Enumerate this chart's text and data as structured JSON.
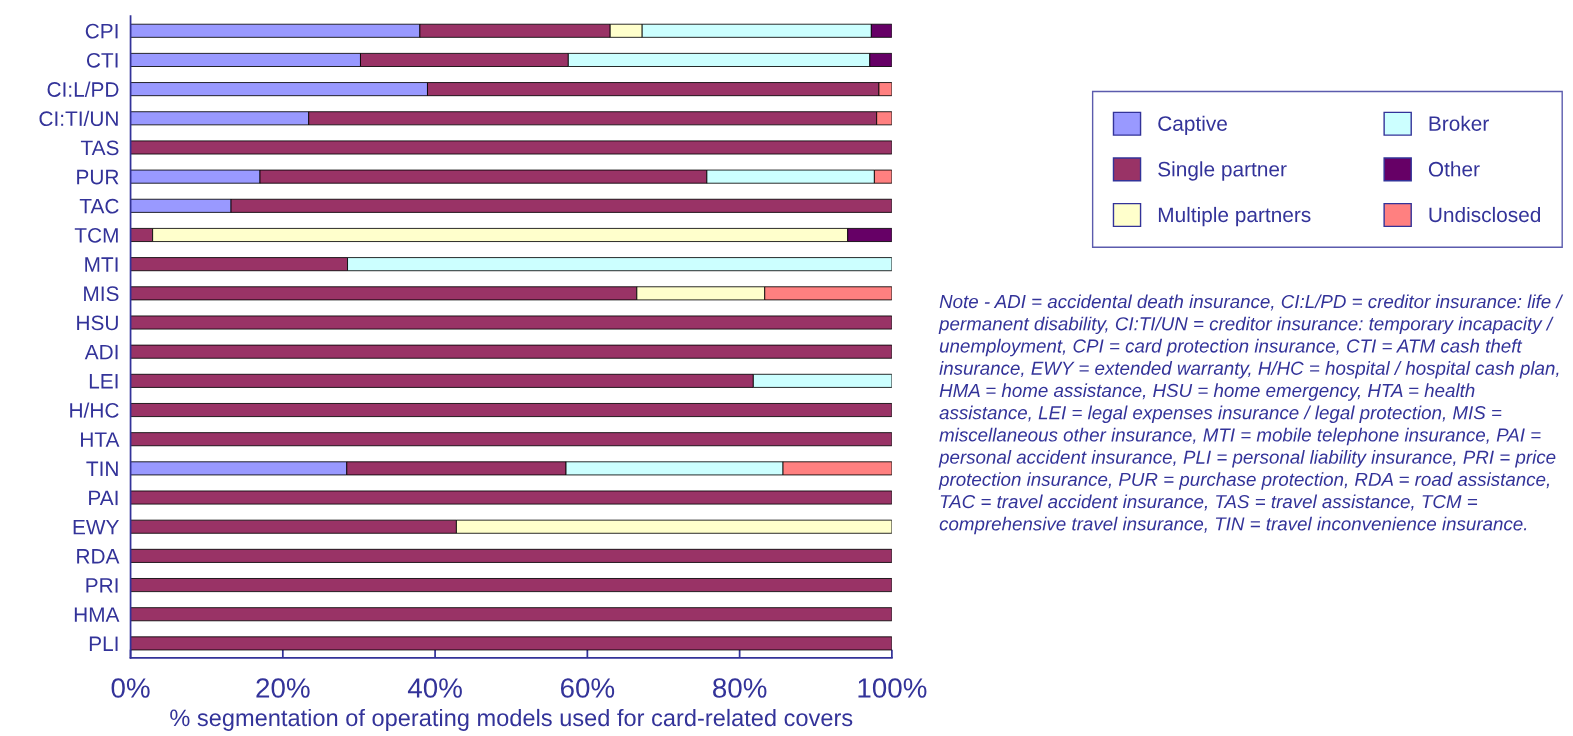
{
  "chart_data": {
    "type": "bar",
    "orientation": "horizontal",
    "stacked": true,
    "categories": [
      "CPI",
      "CTI",
      "CI:L/PD",
      "CI:TI/UN",
      "TAS",
      "PUR",
      "TAC",
      "TCM",
      "MTI",
      "MIS",
      "HSU",
      "ADI",
      "LEI",
      "H/HC",
      "HTA",
      "TIN",
      "PAI",
      "EWY",
      "RDA",
      "PRI",
      "HMA",
      "PLI"
    ],
    "series": [
      {
        "name": "Captive",
        "color": "#9999ff",
        "values": [
          38.0,
          30.2,
          39.0,
          23.4,
          0,
          17.0,
          13.2,
          0,
          0,
          0,
          0,
          0,
          0,
          0,
          0,
          28.4,
          0,
          0,
          0,
          0,
          0,
          0
        ]
      },
      {
        "name": "Single partner",
        "color": "#993366",
        "values": [
          25.0,
          27.3,
          59.3,
          74.6,
          100,
          58.7,
          86.8,
          2.9,
          28.5,
          66.5,
          100,
          100,
          81.8,
          100,
          100,
          28.8,
          100,
          42.8,
          100,
          100,
          100,
          100
        ]
      },
      {
        "name": "Multiple partners",
        "color": "#ffffcc",
        "values": [
          4.2,
          0,
          0,
          0,
          0,
          0,
          0,
          91.3,
          0,
          16.8,
          0,
          0,
          0,
          0,
          0,
          0,
          0,
          57.2,
          0,
          0,
          0,
          0
        ]
      },
      {
        "name": "Broker",
        "color": "#ccffff",
        "values": [
          30.1,
          39.6,
          0,
          0,
          0,
          22.0,
          0,
          0,
          71.5,
          0,
          0,
          0,
          18.2,
          0,
          0,
          28.5,
          0,
          0,
          0,
          0,
          0,
          0
        ]
      },
      {
        "name": "Other",
        "color": "#660066",
        "values": [
          2.7,
          2.9,
          0,
          0,
          0,
          0,
          0,
          5.8,
          0,
          0,
          0,
          0,
          0,
          0,
          0,
          0,
          0,
          0,
          0,
          0,
          0,
          0
        ]
      },
      {
        "name": "Undisclosed",
        "color": "#ff8080",
        "values": [
          0,
          0,
          1.7,
          2.0,
          0,
          2.3,
          0,
          0,
          0,
          16.7,
          0,
          0,
          0,
          0,
          0,
          14.3,
          0,
          0,
          0,
          0,
          0,
          0
        ]
      }
    ],
    "xlim": [
      0,
      100
    ],
    "xticks": [
      {
        "value": 0,
        "label": "0%"
      },
      {
        "value": 20,
        "label": "20%"
      },
      {
        "value": 40,
        "label": "40%"
      },
      {
        "value": 60,
        "label": "60%"
      },
      {
        "value": 80,
        "label": "80%"
      },
      {
        "value": 100,
        "label": "100%"
      }
    ],
    "xlabel": "% segmentation of operating models used for card-related covers",
    "legend": "right",
    "grid": false,
    "annotations": [
      "Note - ADI = accidental death insurance, CI:L/PD = creditor insurance: life / permanent disability, CI:TI/UN = creditor insurance: temporary incapacity / unemployment, CPI = card protection insurance, CTI = ATM cash theft insurance, EWY = extended warranty, H/HC = hospital / hospital cash plan, HMA = home assistance, HSU = home emergency, HTA = health assistance, LEI = legal expenses insurance / legal protection, MIS = miscellaneous other insurance, MTI = mobile telephone insurance, PAI = personal accident insurance, PLI = personal liability insurance, PRI = price protection insurance, PUR = purchase protection, RDA = road assistance, TAC = travel accident insurance, TAS = travel assistance, TCM = comprehensive travel insurance, TIN = travel inconvenience insurance."
    ]
  }
}
